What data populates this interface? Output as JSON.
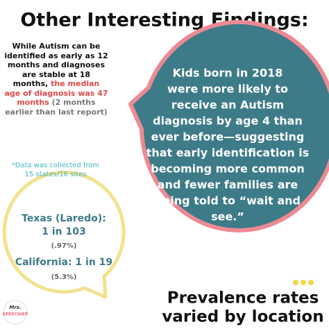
{
  "header": {
    "title": "Other Interesting Findings:"
  },
  "intro": {
    "plain": "While Autism can be identified as early as 12 months and diagnoses are stable at 18 months,",
    "highlight": "the median age of diagnosis was 47 months",
    "aside": "(2 months earlier than last report)"
  },
  "note": "*Data was collected from 15 states/16 sites",
  "main_bubble": {
    "lines": [
      "Kids born in 2018",
      "were more likely to",
      "receive an Autism",
      "diagnosis by age 4 than",
      "ever before—suggesting",
      "that early identification is",
      "becoming more common",
      "and fewer families are",
      "being told to “wait and",
      "see.”"
    ]
  },
  "location_bubble": {
    "texas_label": "Texas (Laredo):",
    "texas_rate": "1 in 103",
    "texas_percent": "(.97%)",
    "california": "California: 1 in 19",
    "california_percent": "(5.3%)"
  },
  "caption": {
    "lines": [
      "Prevalence rates",
      "varied by location"
    ]
  },
  "logo": {
    "top": "Mrs.",
    "bottom": "SPEECHIEP"
  }
}
